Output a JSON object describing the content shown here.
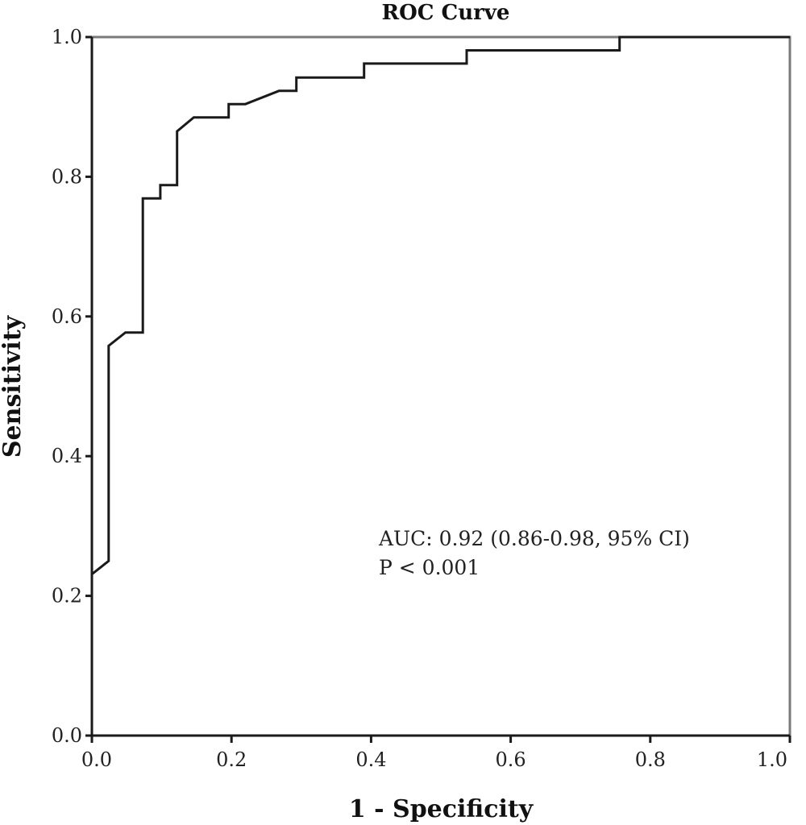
{
  "chart_data": {
    "type": "line",
    "title": "ROC Curve",
    "xlabel": "1 - Specificity",
    "ylabel": "Sensitivity",
    "xlim": [
      0.0,
      1.0
    ],
    "ylim": [
      0.0,
      1.0
    ],
    "x_ticks": [
      "0.0",
      "0.2",
      "0.4",
      "0.6",
      "0.8",
      "1.0"
    ],
    "y_ticks": [
      "0.0",
      "0.2",
      "0.4",
      "0.6",
      "0.8",
      "1.0"
    ],
    "grid": false,
    "legend": "none",
    "series": [
      {
        "x": [
          0.0,
          0.0,
          0.024,
          0.024,
          0.048,
          0.073,
          0.073,
          0.098,
          0.098,
          0.122,
          0.122,
          0.146,
          0.196,
          0.196,
          0.22,
          0.268,
          0.293,
          0.293,
          0.39,
          0.39,
          0.537,
          0.537,
          0.756,
          0.756,
          1.0
        ],
        "y": [
          0.0,
          0.231,
          0.25,
          0.558,
          0.577,
          0.577,
          0.769,
          0.769,
          0.788,
          0.788,
          0.865,
          0.885,
          0.885,
          0.904,
          0.904,
          0.923,
          0.923,
          0.942,
          0.942,
          0.962,
          0.962,
          0.981,
          0.981,
          1.0,
          1.0
        ]
      }
    ],
    "annotations": [
      "AUC: 0.92 (0.86-0.98, 95% CI)",
      "P < 0.001"
    ],
    "colors": {
      "curve": "#1a1a1a",
      "frame": "#7a7a7a"
    }
  }
}
